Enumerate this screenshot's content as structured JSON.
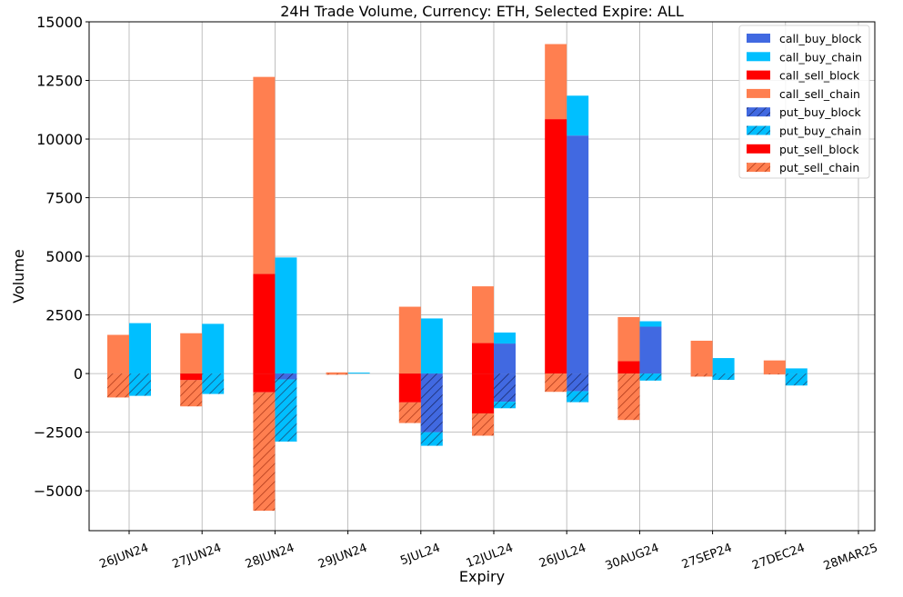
{
  "chart_data": {
    "type": "bar",
    "title": "24H Trade Volume, Currency: ETH, Selected Expire: ALL",
    "xlabel": "Expiry",
    "ylabel": "Volume",
    "ylim": [
      -6700,
      15000
    ],
    "yticks": [
      15000,
      12500,
      10000,
      7500,
      5000,
      2500,
      0,
      -2500,
      -5000
    ],
    "ytick_labels": [
      "15000",
      "12500",
      "10000",
      "7500",
      "5000",
      "2500",
      "0",
      "−2500",
      "−5000"
    ],
    "grid": true,
    "legend_position": "top-right",
    "categories": [
      "26JUN24",
      "27JUN24",
      "28JUN24",
      "29JUN24",
      "5JUL24",
      "12JUL24",
      "26JUL24",
      "30AUG24",
      "27SEP24",
      "27DEC24",
      "28MAR25"
    ],
    "series": [
      {
        "name": "call_buy_block",
        "color": "#4169e1",
        "hatch": false,
        "side": "buy",
        "direction": "up",
        "values": [
          0,
          0,
          0,
          0,
          0,
          1280,
          10150,
          2000,
          0,
          0,
          0
        ]
      },
      {
        "name": "call_buy_chain",
        "color": "#00bfff",
        "hatch": false,
        "side": "buy",
        "direction": "up",
        "values": [
          2150,
          2120,
          4950,
          40,
          2350,
          470,
          1700,
          230,
          660,
          220,
          0
        ]
      },
      {
        "name": "call_sell_block",
        "color": "#ff0000",
        "hatch": false,
        "side": "sell",
        "direction": "up",
        "values": [
          0,
          0,
          4250,
          0,
          0,
          1300,
          10850,
          530,
          0,
          0,
          0
        ]
      },
      {
        "name": "call_sell_chain",
        "color": "#ff7f50",
        "hatch": false,
        "side": "sell",
        "direction": "up",
        "values": [
          1650,
          1720,
          8400,
          50,
          2850,
          2420,
          3200,
          1880,
          1400,
          560,
          0
        ]
      },
      {
        "name": "put_buy_block",
        "color": "#4169e1",
        "hatch": true,
        "side": "buy",
        "direction": "down",
        "values": [
          0,
          0,
          -250,
          0,
          -2500,
          -1200,
          -750,
          0,
          0,
          0,
          0
        ]
      },
      {
        "name": "put_buy_chain",
        "color": "#00bfff",
        "hatch": true,
        "side": "buy",
        "direction": "down",
        "values": [
          -950,
          -870,
          -2650,
          0,
          -580,
          -280,
          -470,
          -300,
          -270,
          -510,
          0
        ]
      },
      {
        "name": "put_sell_block",
        "color": "#ff0000",
        "hatch": false,
        "side": "sell",
        "direction": "down",
        "values": [
          0,
          -280,
          -800,
          0,
          -1230,
          -1700,
          0,
          0,
          0,
          0,
          0
        ]
      },
      {
        "name": "put_sell_chain",
        "color": "#ff7f50",
        "hatch": true,
        "side": "sell",
        "direction": "down",
        "values": [
          -1020,
          -1120,
          -5050,
          -50,
          -880,
          -950,
          -780,
          -1980,
          -130,
          -40,
          0
        ]
      }
    ]
  }
}
